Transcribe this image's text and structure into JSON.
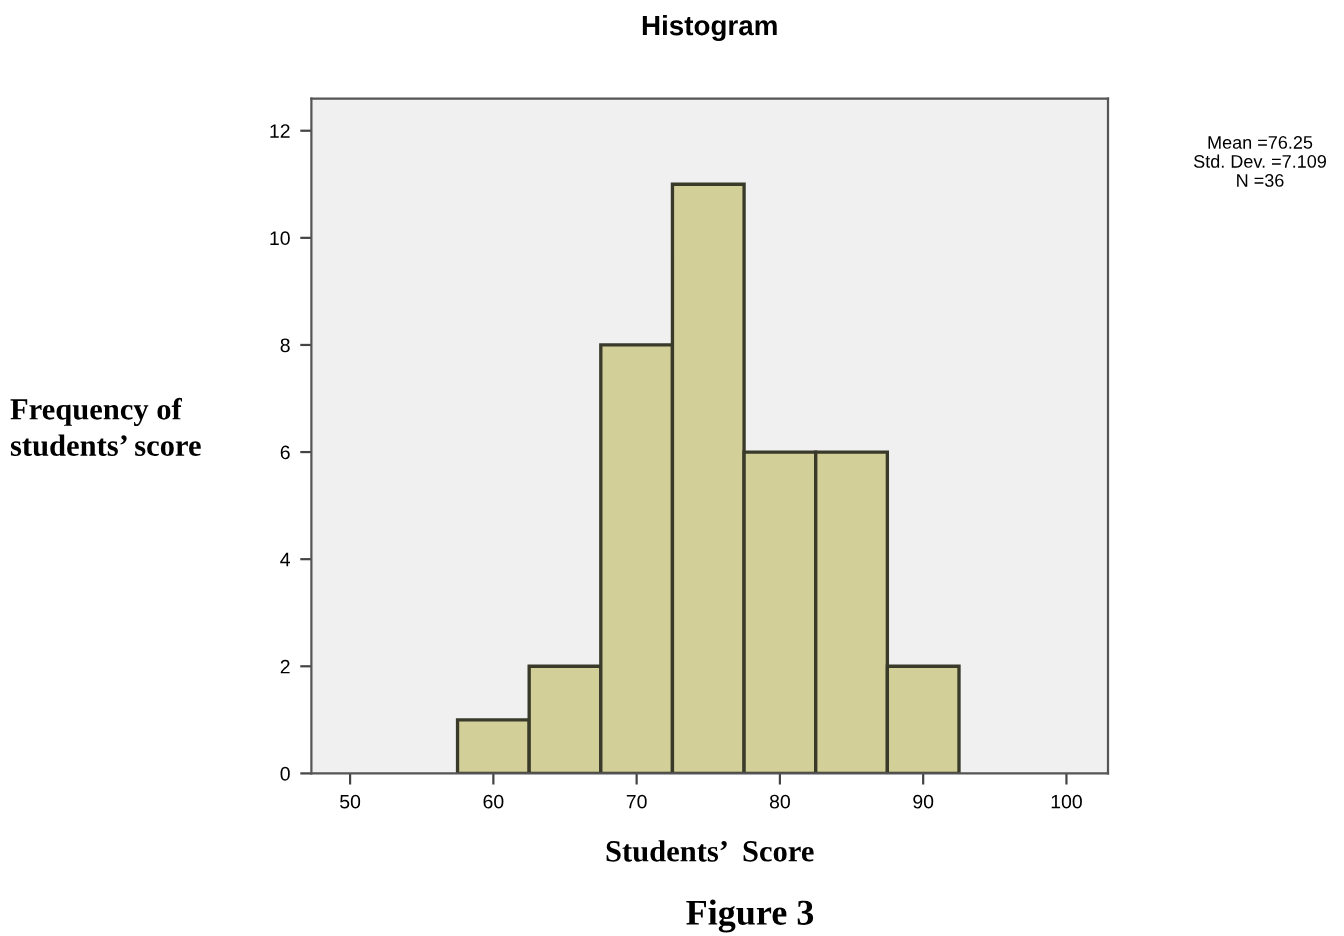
{
  "chart_data": {
    "type": "histogram",
    "title": "Histogram",
    "xlabel": "Students’  Score",
    "ylabel": "Frequency of\nstudents’ score",
    "bins": [
      57.5,
      62.5,
      67.5,
      72.5,
      77.5,
      82.5,
      87.5,
      92.5
    ],
    "values": [
      1,
      2,
      8,
      11,
      6,
      6,
      2
    ],
    "color": "#d3cf99",
    "xlim": [
      47.3,
      102.9
    ],
    "xticks": [
      50,
      60,
      70,
      80,
      90,
      100
    ],
    "ylim": [
      0,
      12.6
    ],
    "yticks": [
      0,
      2,
      4,
      6,
      8,
      10,
      12
    ],
    "grid": false,
    "legend": false,
    "annotations": [
      "Mean =76.25",
      "Std. Dev. =7.109",
      "N =36",
      "Figure 3"
    ]
  }
}
